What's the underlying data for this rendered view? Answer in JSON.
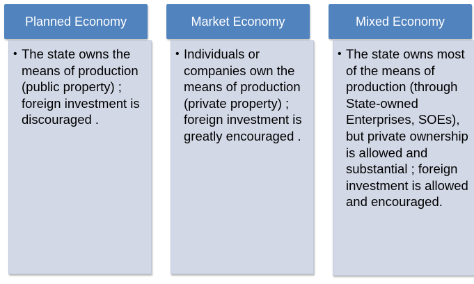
{
  "columns": [
    {
      "title": "Planned Economy",
      "points": [
        "The state owns the means of production (public property) ; foreign investment is discouraged ."
      ]
    },
    {
      "title": "Market Economy",
      "points": [
        "Individuals or companies own the means of production (private property) ; foreign investment is greatly encouraged ."
      ]
    },
    {
      "title": "Mixed Economy",
      "points": [
        "The state owns most of the means of production (through State-owned Enterprises, SOEs), but private ownership is allowed and substantial ; foreign investment is allowed and encouraged."
      ]
    }
  ],
  "colors": {
    "header_bg": "#5183be",
    "header_text": "#ffffff",
    "body_bg": "#d2d8e6",
    "body_text": "#000000"
  },
  "icons": {
    "bullet": "bullet-icon"
  }
}
